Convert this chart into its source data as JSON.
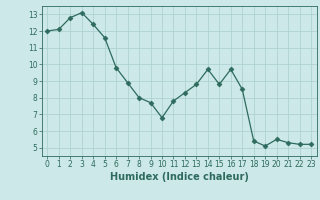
{
  "x": [
    0,
    1,
    2,
    3,
    4,
    5,
    6,
    7,
    8,
    9,
    10,
    11,
    12,
    13,
    14,
    15,
    16,
    17,
    18,
    19,
    20,
    21,
    22,
    23
  ],
  "y": [
    12.0,
    12.1,
    12.8,
    13.1,
    12.4,
    11.6,
    9.8,
    8.9,
    8.0,
    7.7,
    6.8,
    7.8,
    8.3,
    8.8,
    9.7,
    8.8,
    9.7,
    8.5,
    5.4,
    5.1,
    5.5,
    5.3,
    5.2,
    5.2
  ],
  "line_color": "#2e6b5e",
  "marker": "D",
  "marker_size": 2.5,
  "bg_color": "#cce8e8",
  "grid_color": "#aacece",
  "xlabel": "Humidex (Indice chaleur)",
  "xlim": [
    -0.5,
    23.5
  ],
  "ylim": [
    4.5,
    13.5
  ],
  "yticks": [
    5,
    6,
    7,
    8,
    9,
    10,
    11,
    12,
    13
  ],
  "xticks": [
    0,
    1,
    2,
    3,
    4,
    5,
    6,
    7,
    8,
    9,
    10,
    11,
    12,
    13,
    14,
    15,
    16,
    17,
    18,
    19,
    20,
    21,
    22,
    23
  ],
  "tick_color": "#2e6b5e",
  "label_fontsize": 7,
  "tick_fontsize": 5.5
}
